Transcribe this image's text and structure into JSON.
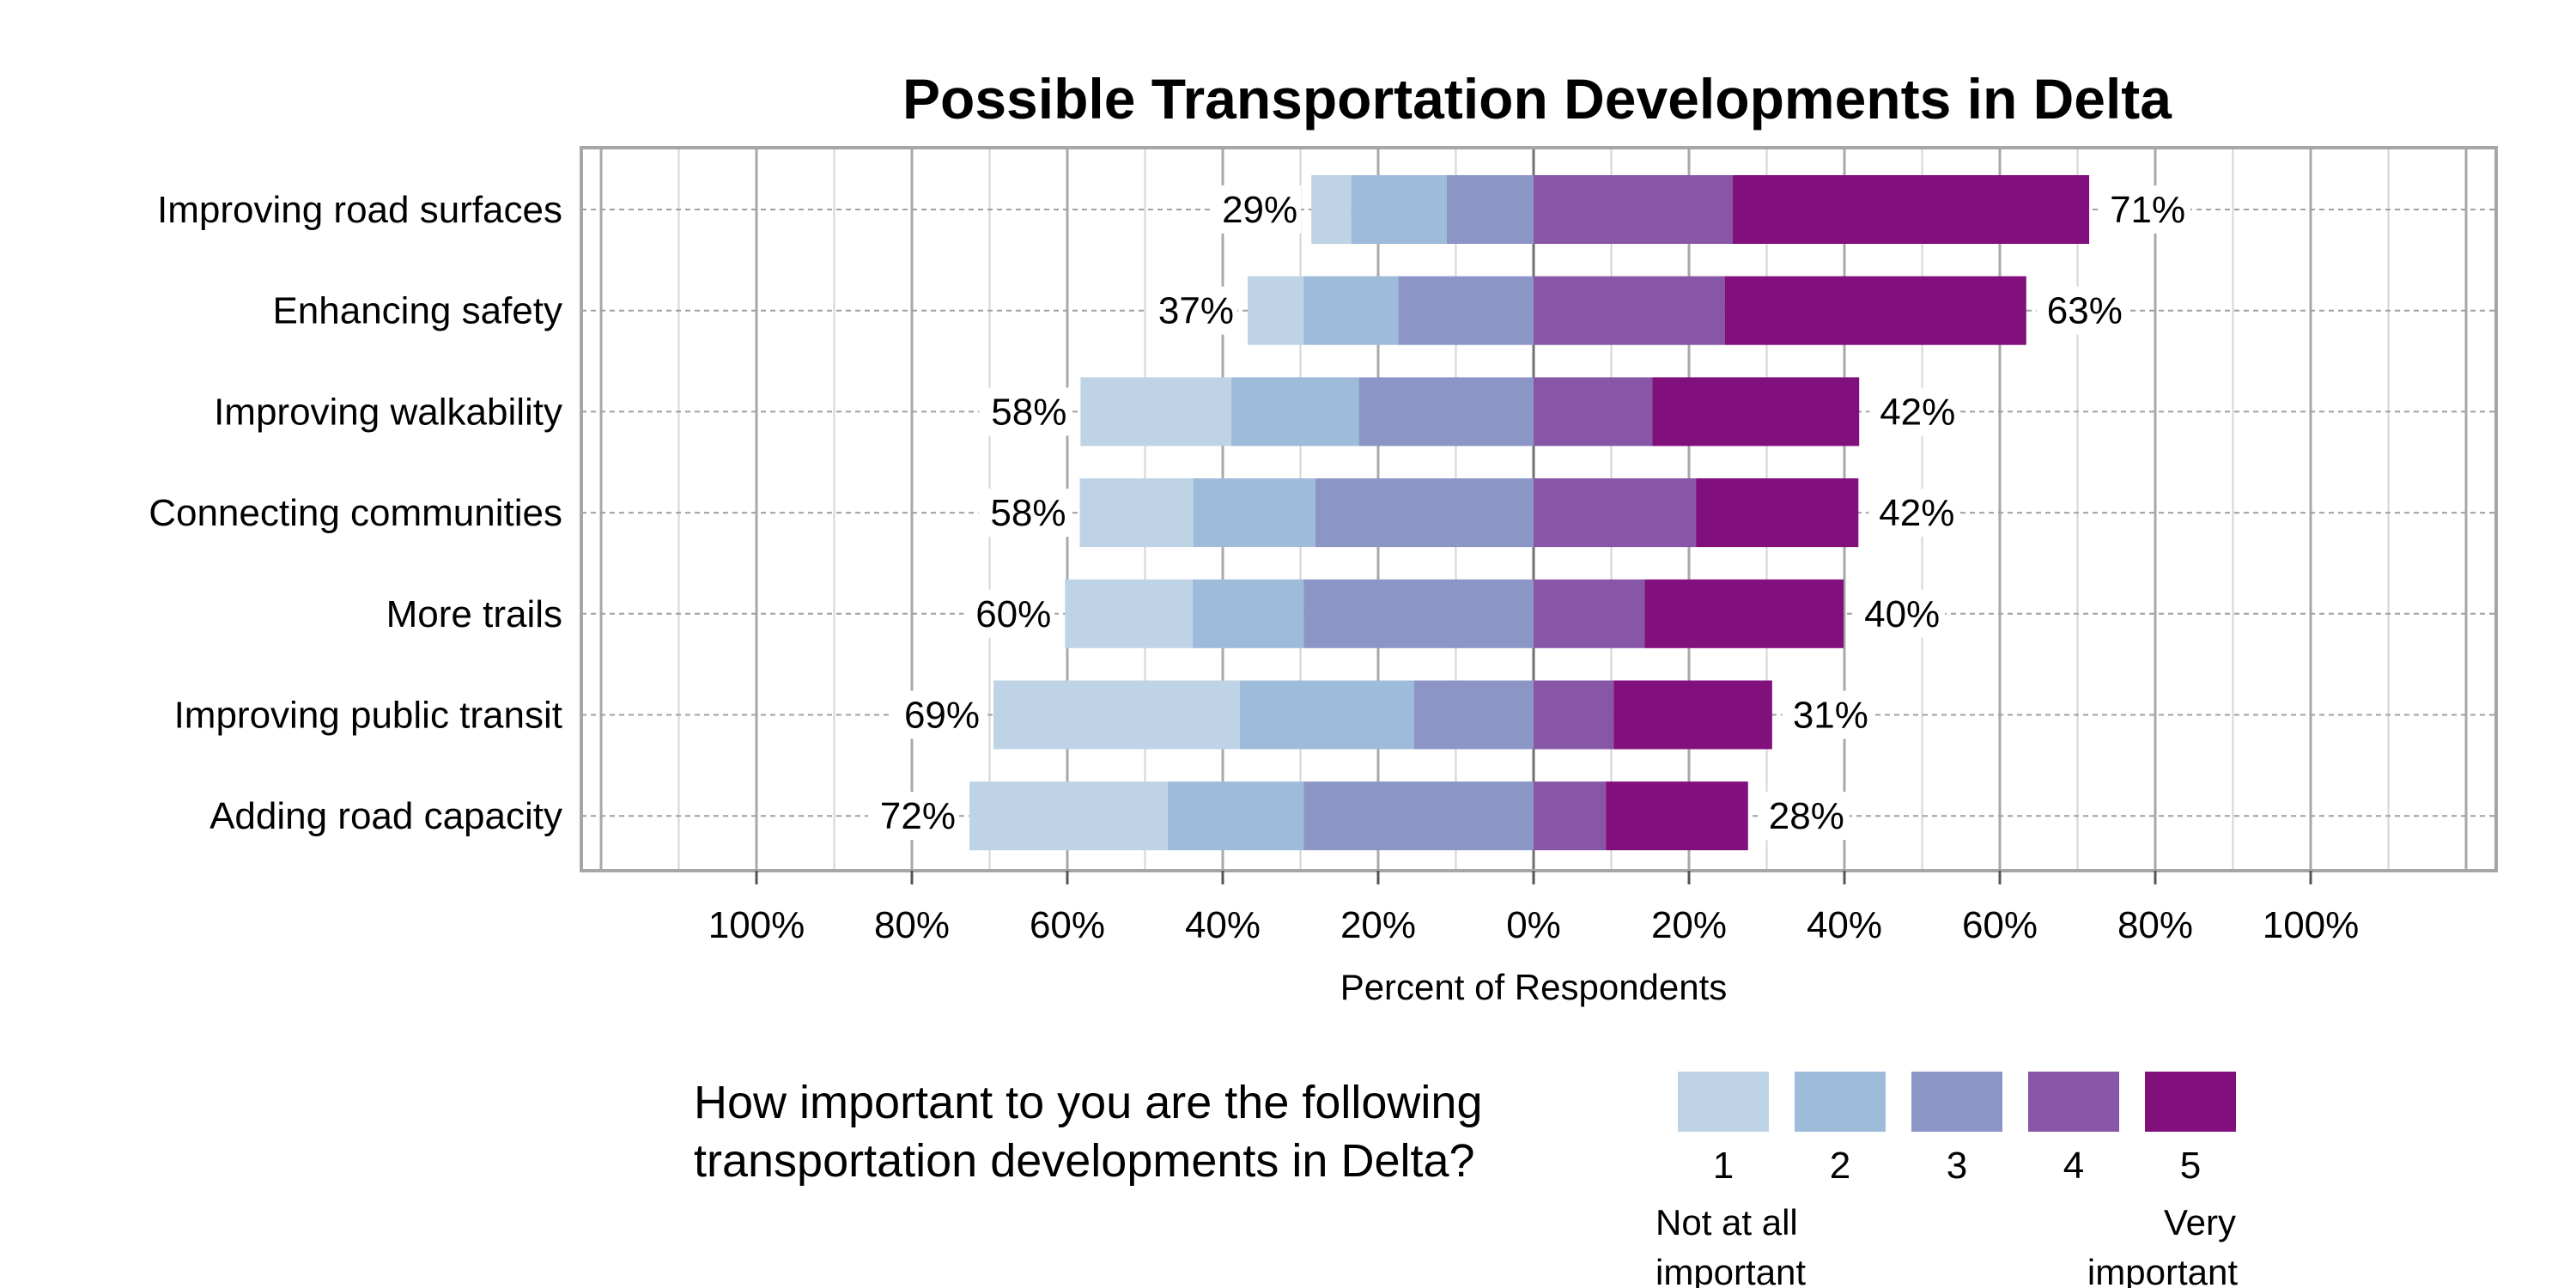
{
  "chart_data": {
    "type": "bar",
    "orientation": "horizontal",
    "stacked": "diverging",
    "title": "Possible Transportation Developments in Delta",
    "xlabel": "Percent of Respondents",
    "ylabel": "",
    "xlim": [
      -100,
      100
    ],
    "x_ticks": [
      "100%",
      "80%",
      "60%",
      "40%",
      "20%",
      "0%",
      "20%",
      "40%",
      "60%",
      "80%",
      "100%"
    ],
    "x_tick_values": [
      -100,
      -80,
      -60,
      -40,
      -20,
      0,
      20,
      40,
      60,
      80,
      100
    ],
    "grid": true,
    "categories": [
      "Improving road surfaces",
      "Enhancing safety",
      "Improving walkability",
      "Connecting communities",
      "More trails",
      "Improving public transit",
      "Adding road capacity"
    ],
    "series": [
      {
        "name": "1",
        "color": "#bfd3e6",
        "side": "left",
        "values": [
          5.1,
          7.2,
          19.4,
          14.6,
          16.4,
          31.7,
          25.5
        ]
      },
      {
        "name": "2",
        "color": "#9ebcda",
        "side": "left",
        "values": [
          12.3,
          12.2,
          16.4,
          15.7,
          14.3,
          22.4,
          17.5
        ]
      },
      {
        "name": "3",
        "color": "#8c96c6",
        "side": "left",
        "values": [
          11.2,
          17.4,
          22.5,
          28.1,
          29.6,
          15.4,
          29.6
        ]
      },
      {
        "name": "4",
        "color": "#8856a7",
        "side": "right",
        "values": [
          25.6,
          24.6,
          15.3,
          20.9,
          14.3,
          10.3,
          9.3
        ]
      },
      {
        "name": "5",
        "color": "#810f7c",
        "side": "right",
        "values": [
          45.9,
          38.8,
          26.6,
          20.9,
          25.6,
          20.4,
          18.3
        ]
      }
    ],
    "left_labels": [
      "29%",
      "37%",
      "58%",
      "58%",
      "60%",
      "69%",
      "72%"
    ],
    "right_labels": [
      "71%",
      "63%",
      "42%",
      "42%",
      "40%",
      "31%",
      "28%"
    ],
    "legend": {
      "position": "bottom",
      "question_lines": [
        "How important to you are the following",
        "transportation developments in Delta?"
      ],
      "scale_labels": [
        "1",
        "2",
        "3",
        "4",
        "5"
      ],
      "low_anchor": [
        "Not at all",
        "important"
      ],
      "high_anchor": [
        "Very",
        "important"
      ]
    }
  }
}
